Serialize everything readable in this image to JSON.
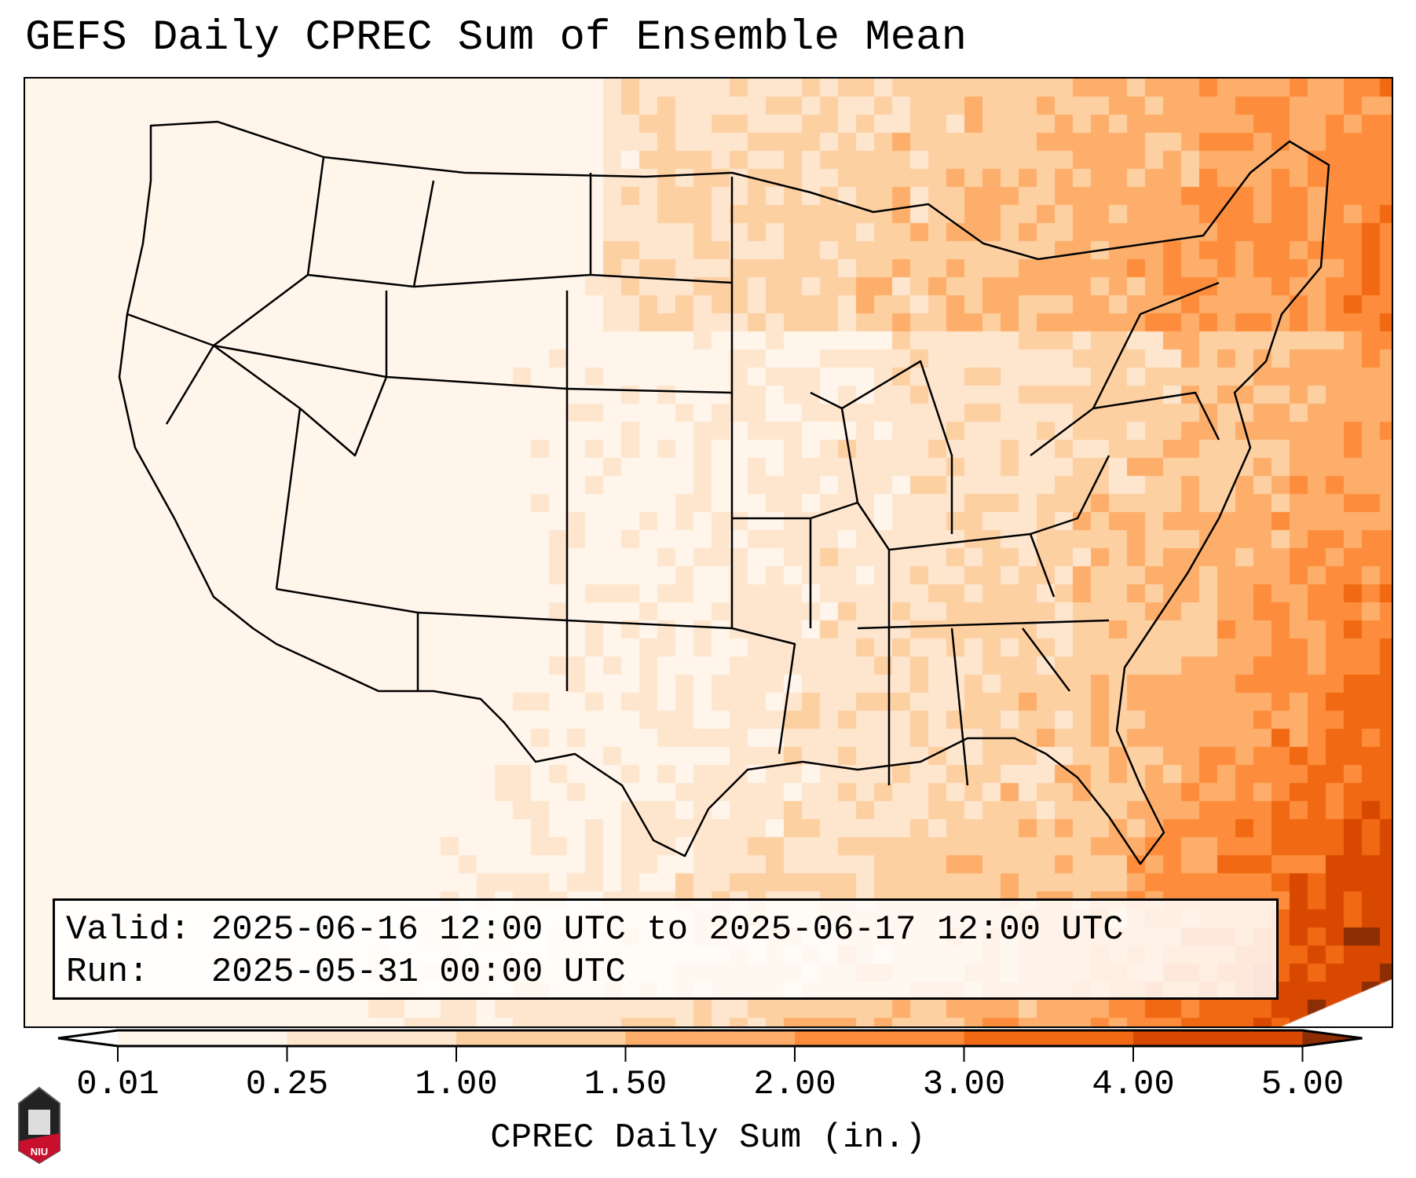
{
  "title": "GEFS Daily CPREC Sum of Ensemble Mean",
  "info": {
    "valid_label": "Valid:",
    "valid_value": "2025-06-16 12:00 UTC to 2025-06-17 12:00 UTC",
    "run_label": "Run:",
    "run_value": "2025-05-31 00:00 UTC"
  },
  "colorbar": {
    "label": "CPREC Daily Sum (in.)",
    "ticks": [
      "0.01",
      "0.25",
      "1.00",
      "1.50",
      "2.00",
      "3.00",
      "4.00",
      "5.00"
    ],
    "colors": [
      "#fff5eb",
      "#fee6ce",
      "#fdd0a2",
      "#fdae6b",
      "#fd8d3c",
      "#f16913",
      "#d94801"
    ],
    "under_color": "#ffffff",
    "over_color": "#8c2d04"
  },
  "logo": {
    "text": "NIU"
  }
}
